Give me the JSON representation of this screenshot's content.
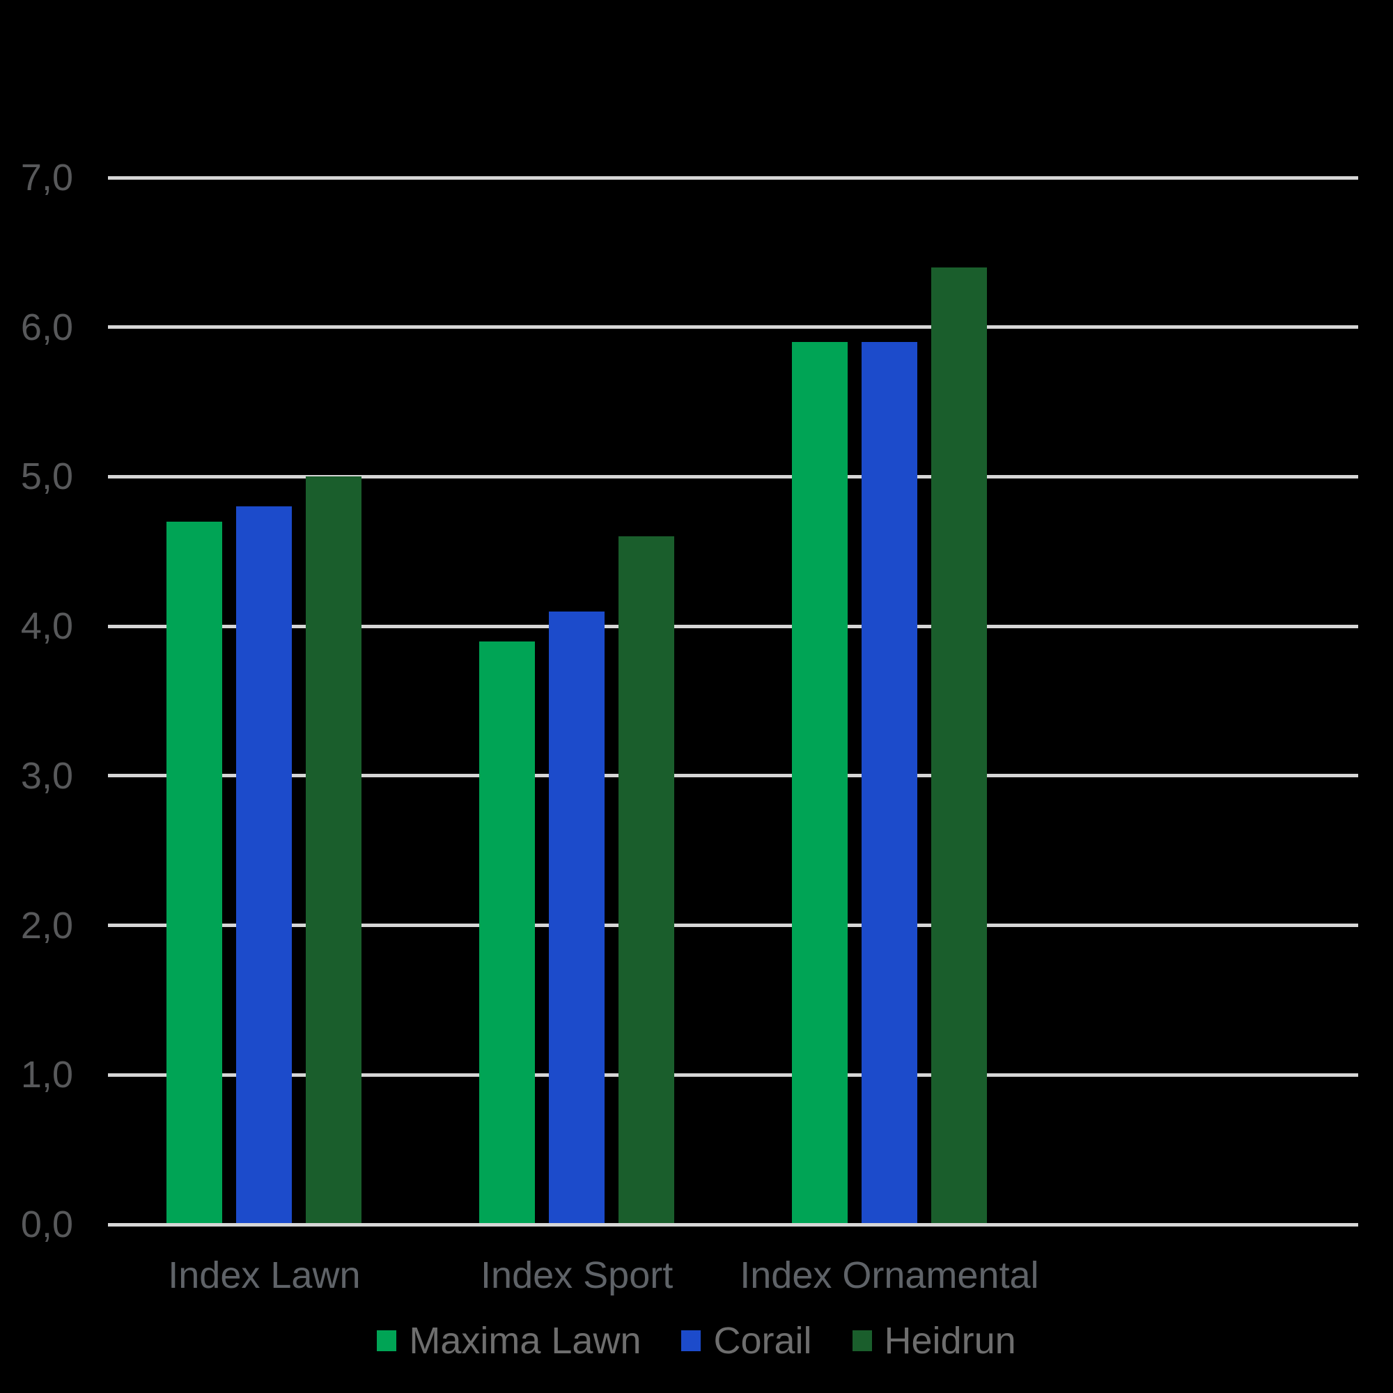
{
  "chart_data": {
    "type": "bar",
    "title": "",
    "xlabel": "",
    "ylabel": "",
    "categories": [
      "Index Lawn",
      "Index Sport",
      "Index Ornamental"
    ],
    "series": [
      {
        "name": "Maxima Lawn",
        "color": "#00A455",
        "values": [
          4.7,
          3.9,
          5.9
        ]
      },
      {
        "name": "Corail",
        "color": "#1C4BCB",
        "values": [
          4.8,
          4.1,
          5.9
        ]
      },
      {
        "name": "Heidrun",
        "color": "#1A5E2C",
        "values": [
          5.0,
          4.6,
          6.4
        ]
      }
    ],
    "ylim": [
      0,
      7
    ],
    "ytick_labels": [
      "0,0",
      "1,0",
      "2,0",
      "3,0",
      "4,0",
      "5,0",
      "6,0",
      "7,0"
    ],
    "decimal_separator": ",",
    "grid": true,
    "num_band_slots": 4,
    "legend_position": "bottom",
    "colors": {
      "background": "#000000",
      "gridline": "#D6D6D6",
      "tick_text": "#58595B",
      "category_text": "#5F6368",
      "legend_text": "#6E6E6E"
    }
  }
}
